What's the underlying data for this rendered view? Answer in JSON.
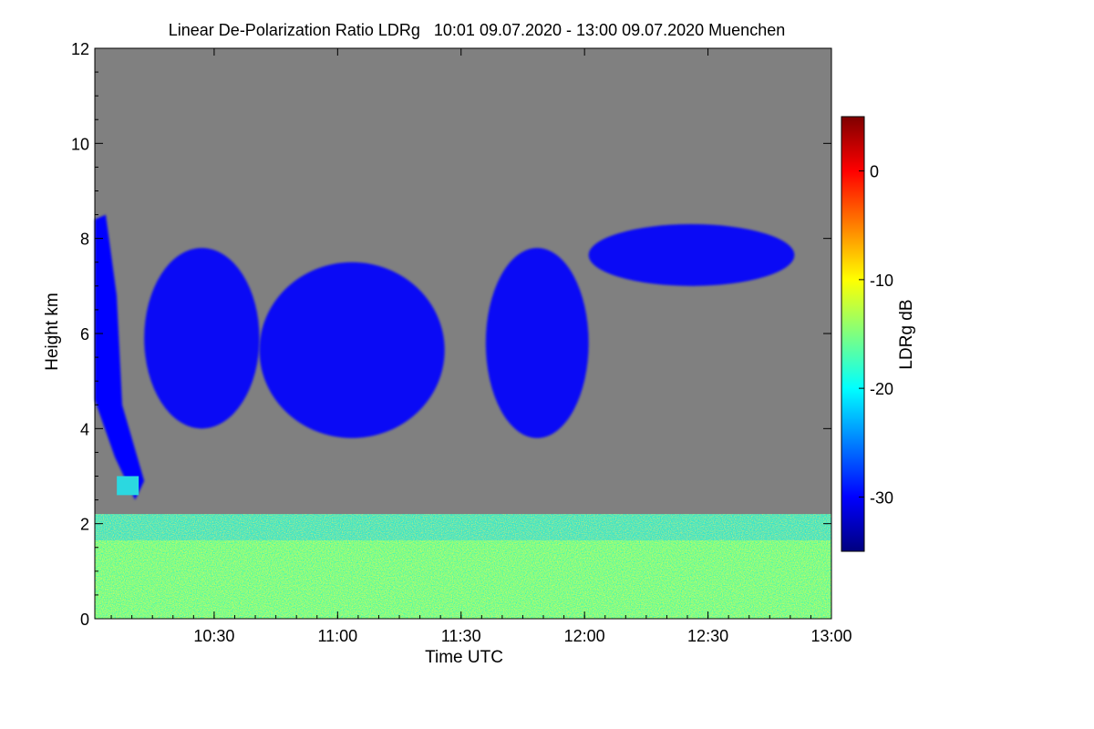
{
  "chart_data": {
    "type": "heatmap",
    "title": "Linear De-Polarization Ratio LDRg   10:01 09.07.2020 - 13:00 09.07.2020 Muenchen",
    "xlabel": "Time UTC",
    "ylabel": "Height km",
    "x_range": [
      "10:01",
      "13:00"
    ],
    "x_ticks": [
      "10:30",
      "11:00",
      "11:30",
      "12:00",
      "12:30",
      "13:00"
    ],
    "x_tick_minutes": [
      29,
      59,
      89,
      119,
      149,
      179
    ],
    "x_range_minutes": [
      0,
      179
    ],
    "ylim": [
      0,
      12
    ],
    "y_ticks": [
      0,
      2,
      4,
      6,
      8,
      10,
      12
    ],
    "background_color": "#808080",
    "colorbar": {
      "label": "LDRg dB",
      "range": [
        -35,
        5
      ],
      "ticks": [
        0,
        -10,
        -20,
        -30
      ],
      "colors": [
        "#00007f",
        "#0000ff",
        "#007fff",
        "#00ffff",
        "#7fff7f",
        "#ffff00",
        "#ff7f00",
        "#ff0000",
        "#7f0000"
      ]
    },
    "features": [
      {
        "name": "boundary-layer",
        "x": [
          0,
          179
        ],
        "y": [
          0,
          2.2
        ],
        "ldr_db": -13
      },
      {
        "name": "cirrus-descending-streak",
        "x": [
          0,
          12
        ],
        "y": [
          2.5,
          8.5
        ],
        "ldr_db": -32
      },
      {
        "name": "cirrus-block-early",
        "x": [
          12,
          40
        ],
        "y": [
          4,
          7.8
        ],
        "ldr_db": -32
      },
      {
        "name": "cirrus-block-middle",
        "x": [
          40,
          85
        ],
        "y": [
          3.8,
          7.5
        ],
        "ldr_db": -32
      },
      {
        "name": "cirrus-block-noon",
        "x": [
          95,
          120
        ],
        "y": [
          3.8,
          7.8
        ],
        "ldr_db": -30
      },
      {
        "name": "cirrus-patch-afternoon",
        "x": [
          120,
          170
        ],
        "y": [
          7,
          8.3
        ],
        "ldr_db": -32
      }
    ]
  }
}
